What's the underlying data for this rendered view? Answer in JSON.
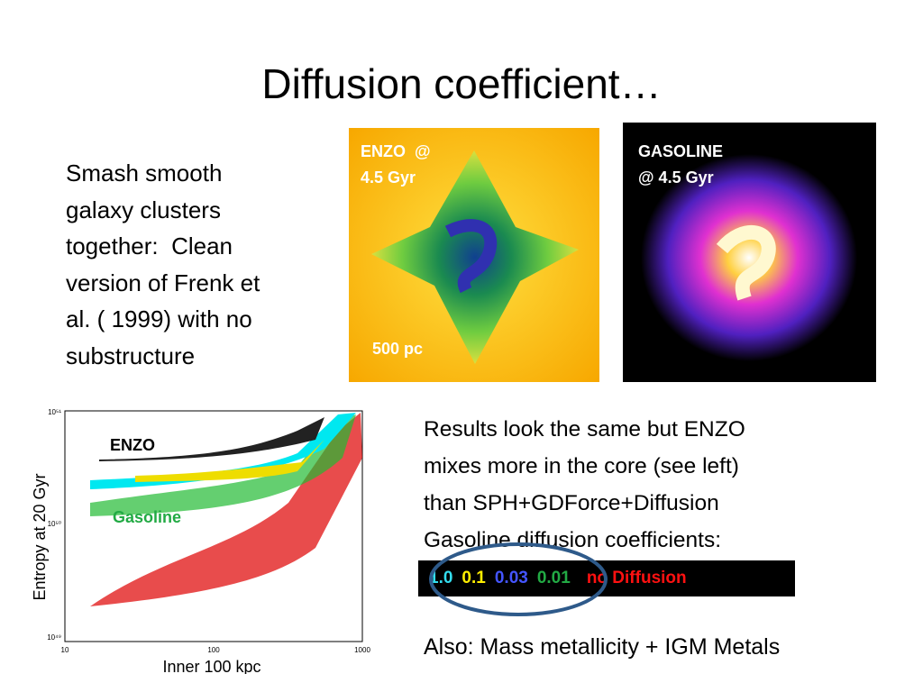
{
  "title": "Diffusion coefficient…",
  "intro": {
    "lines": [
      "Smash smooth",
      "galaxy clusters",
      "together:  Clean",
      "version of Frenk et",
      "al. ( 1999) with no",
      "substructure"
    ]
  },
  "enzo_image": {
    "label_lines": [
      "ENZO  @",
      "4.5 Gyr"
    ],
    "scale": "500 pc"
  },
  "gasoline_image": {
    "label_lines": [
      "GASOLINE",
      "@ 4.5 Gyr"
    ]
  },
  "plot": {
    "y_label": "Entropy at 20 Gyr",
    "x_caption": "Inner 100 kpc",
    "labels": [
      "ENZO",
      "Gasoline"
    ],
    "xticks": [
      "10",
      "100",
      "1000"
    ],
    "yticks": [
      "10⁵¹",
      "10⁵⁰",
      "10⁴⁹"
    ]
  },
  "results": {
    "lines": [
      "Results look the same but ENZO",
      "mixes more in the core (see left)",
      "than SPH+GDForce+Diffusion",
      "Gasoline diffusion coefficients:"
    ]
  },
  "legend": [
    {
      "text": "1.0",
      "color": "#33ddee"
    },
    {
      "text": "0.1",
      "color": "#ffee00"
    },
    {
      "text": "0.03",
      "color": "#4455ff"
    },
    {
      "text": "0.01",
      "color": "#22aa44"
    },
    {
      "text": "no Diffusion",
      "color": "#ff1111"
    }
  ],
  "footer": "Also: Mass metallicity + IGM Metals"
}
